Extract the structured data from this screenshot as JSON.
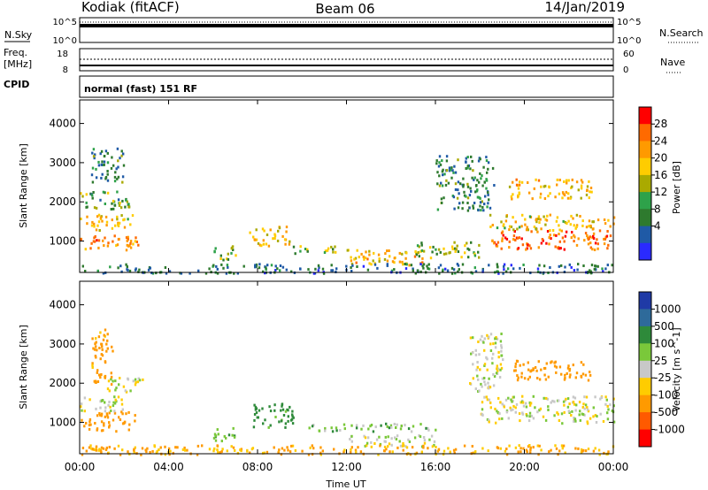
{
  "header": {
    "site": "Kodiak (fitACF)",
    "beam": "Beam 06",
    "date": "14/Jan/2019"
  },
  "strips": {
    "nsky_label": "N.Sky",
    "nsky_ticks": [
      "10^5",
      "10^0"
    ],
    "nsearch_label": "N.Search",
    "nsearch_ticks": [
      "10^5",
      "10^0"
    ],
    "freq_label_1": "Freq.",
    "freq_label_2": "[MHz]",
    "freq_ticks": [
      "18",
      "8"
    ],
    "nave_label": "Nave",
    "nave_ticks": [
      "60",
      "0"
    ],
    "cpid_label": "CPID",
    "mode_text": "normal (fast) 151 RF"
  },
  "axes": {
    "ylabel": "Slant Range [km]",
    "yticks": [
      "4000",
      "3000",
      "2000",
      "1000"
    ],
    "xticks": [
      "00:00",
      "04:00",
      "08:00",
      "12:00",
      "16:00",
      "20:00",
      "00:00"
    ],
    "xlabel": "Time UT"
  },
  "power_colorbar": {
    "label": "Power [dB]",
    "ticks": [
      "28",
      "24",
      "20",
      "16",
      "12",
      "8",
      "4"
    ],
    "colors": [
      "#ff0000",
      "#ff6a00",
      "#ff9a00",
      "#ffcc00",
      "#aaaa00",
      "#2ea24a",
      "#2e7a2e",
      "#1f5aa6",
      "#2a2aff"
    ]
  },
  "velocity_colorbar": {
    "label": "Velocity [m s^-1]",
    "ticks": [
      "1000",
      "500",
      "100",
      "25",
      "-25",
      "-100",
      "-500",
      "-1000"
    ],
    "colors": [
      "#1f3aa6",
      "#2e6a9a",
      "#2e8a3a",
      "#7ac83a",
      "#c8c8c8",
      "#ffcc00",
      "#ff9a00",
      "#ff5a00",
      "#ff0000"
    ]
  },
  "chart_data": [
    {
      "type": "heatmap",
      "name": "Power",
      "title": "",
      "xlabel": "",
      "ylabel": "Slant Range [km]",
      "xlim": [
        0,
        24
      ],
      "ylim": [
        200,
        4600
      ],
      "x_units": "hours UT",
      "regions": [
        {
          "t0": 0.0,
          "t1": 2.6,
          "r0": 800,
          "r1": 1200,
          "value": 24
        },
        {
          "t0": 0.0,
          "t1": 2.4,
          "r0": 1300,
          "r1": 1700,
          "value": 18
        },
        {
          "t0": 0.0,
          "t1": 2.2,
          "r0": 1800,
          "r1": 2300,
          "value": 12
        },
        {
          "t0": 0.5,
          "t1": 2.0,
          "r0": 2500,
          "r1": 3400,
          "value": 10
        },
        {
          "t0": 6.0,
          "t1": 7.0,
          "r0": 500,
          "r1": 900,
          "value": 14
        },
        {
          "t0": 7.6,
          "t1": 9.4,
          "r0": 900,
          "r1": 1400,
          "value": 18
        },
        {
          "t0": 9.4,
          "t1": 11.6,
          "r0": 700,
          "r1": 900,
          "value": 14
        },
        {
          "t0": 12.0,
          "t1": 15.6,
          "r0": 400,
          "r1": 800,
          "value": 20
        },
        {
          "t0": 15.0,
          "t1": 18.0,
          "r0": 600,
          "r1": 1000,
          "value": 14
        },
        {
          "t0": 18.5,
          "t1": 24.0,
          "r0": 800,
          "r1": 1300,
          "value": 26
        },
        {
          "t0": 18.4,
          "t1": 24.0,
          "r0": 1300,
          "r1": 1700,
          "value": 18
        },
        {
          "t0": 19.2,
          "t1": 23.0,
          "r0": 2100,
          "r1": 2600,
          "value": 20
        },
        {
          "t0": 16.0,
          "t1": 18.6,
          "r0": 1800,
          "r1": 3200,
          "value": 10
        },
        {
          "t0": 0.0,
          "t1": 24.0,
          "r0": 200,
          "r1": 450,
          "value": 8
        }
      ]
    },
    {
      "type": "heatmap",
      "name": "Velocity",
      "title": "",
      "xlabel": "Time UT",
      "ylabel": "Slant Range [km]",
      "xlim": [
        0,
        24
      ],
      "ylim": [
        200,
        4600
      ],
      "x_units": "hours UT",
      "regions": [
        {
          "t0": 0.0,
          "t1": 2.5,
          "r0": 800,
          "r1": 1300,
          "value": -200
        },
        {
          "t0": 0.0,
          "t1": 2.0,
          "r0": 1300,
          "r1": 1700,
          "value": 0
        },
        {
          "t0": 1.2,
          "t1": 2.8,
          "r0": 1800,
          "r1": 2200,
          "value": 0
        },
        {
          "t0": 0.5,
          "t1": 1.5,
          "r0": 2000,
          "r1": 3400,
          "value": -150
        },
        {
          "t0": 6.0,
          "t1": 7.0,
          "r0": 500,
          "r1": 900,
          "value": 60
        },
        {
          "t0": 7.6,
          "t1": 9.6,
          "r0": 900,
          "r1": 1500,
          "value": 150
        },
        {
          "t0": 10.0,
          "t1": 16.0,
          "r0": 800,
          "r1": 1000,
          "value": 60
        },
        {
          "t0": 12.0,
          "t1": 16.0,
          "r0": 400,
          "r1": 700,
          "value": 0
        },
        {
          "t0": 18.0,
          "t1": 24.0,
          "r0": 1000,
          "r1": 1700,
          "value": 0
        },
        {
          "t0": 19.5,
          "t1": 23.0,
          "r0": 2100,
          "r1": 2600,
          "value": -300
        },
        {
          "t0": 17.5,
          "t1": 19.0,
          "r0": 1800,
          "r1": 3300,
          "value": 0
        },
        {
          "t0": 0.0,
          "t1": 24.0,
          "r0": 200,
          "r1": 450,
          "value": -120
        }
      ]
    }
  ]
}
